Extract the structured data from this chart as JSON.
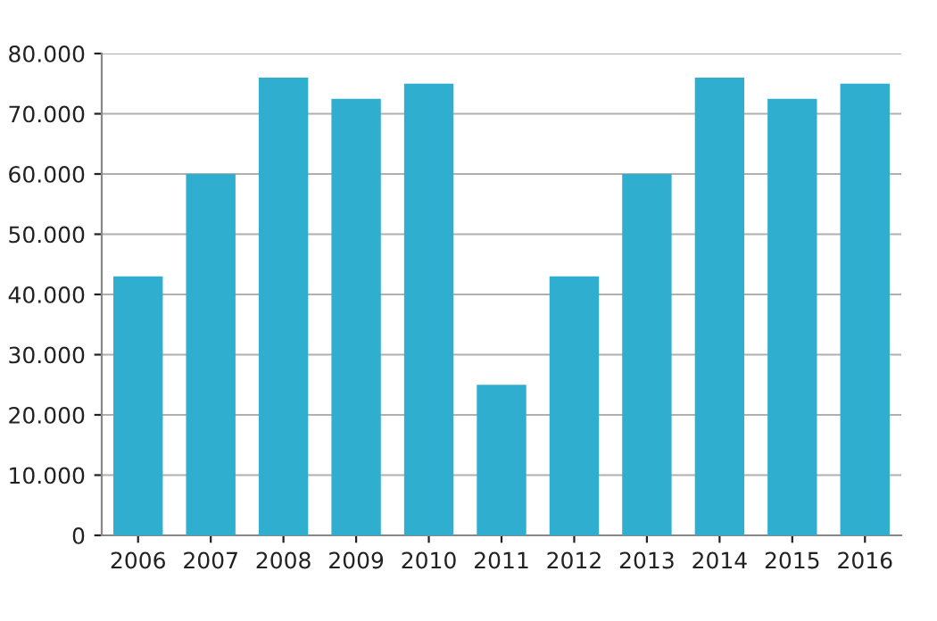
{
  "chart_data": {
    "type": "bar",
    "categories": [
      "2006",
      "2007",
      "2008",
      "2009",
      "2010",
      "2011",
      "2012",
      "2013",
      "2014",
      "2015",
      "2016"
    ],
    "values": [
      43000,
      60000,
      76000,
      72500,
      75000,
      25000,
      43000,
      60000,
      76000,
      72500,
      75000
    ],
    "color": "#30aed0",
    "ylim": [
      0,
      80000
    ],
    "yticks": [
      {
        "value": 0,
        "label": "0"
      },
      {
        "value": 10000,
        "label": "10.000"
      },
      {
        "value": 20000,
        "label": "20.000"
      },
      {
        "value": 30000,
        "label": "30.000"
      },
      {
        "value": 40000,
        "label": "40.000"
      },
      {
        "value": 50000,
        "label": "50.000"
      },
      {
        "value": 60000,
        "label": "60.000"
      },
      {
        "value": 70000,
        "label": "70.000"
      },
      {
        "value": 80000,
        "label": "80.000"
      }
    ],
    "grid": "y",
    "legend": false
  }
}
